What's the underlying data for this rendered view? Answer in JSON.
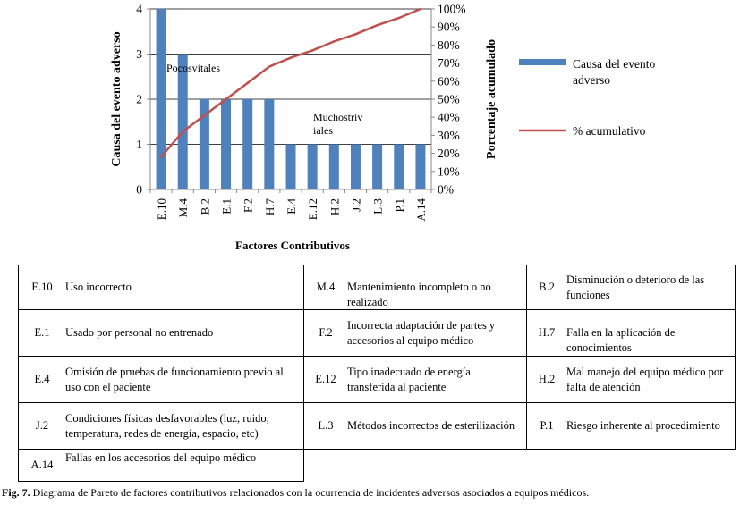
{
  "chart_data": {
    "type": "bar",
    "categories": [
      "E.10",
      "M.4",
      "B.2",
      "E.1",
      "F.2",
      "H.7",
      "E.4",
      "E.12",
      "H.2",
      "J.2",
      "L.3",
      "P.1",
      "A.14"
    ],
    "series": [
      {
        "name": "Causa del evento adverso",
        "values": [
          4,
          3,
          2,
          2,
          2,
          2,
          1,
          1,
          1,
          1,
          1,
          1,
          1
        ],
        "color": "#4F81BD",
        "axis": "left"
      },
      {
        "name": "% acumulativo",
        "values": [
          18,
          32,
          41,
          50,
          59,
          68,
          73,
          77,
          82,
          86,
          91,
          95,
          100
        ],
        "color": "#C0504D",
        "axis": "right"
      }
    ],
    "xlabel": "Factores Contributivos",
    "ylabel": "Causa del evento adverso",
    "y2label": "Porcentaje acumulado",
    "ylim": [
      0,
      4
    ],
    "y2lim": [
      0,
      100
    ],
    "yticks": [
      "0",
      "1",
      "2",
      "3",
      "4"
    ],
    "y2ticks": [
      "0%",
      "10%",
      "20%",
      "30%",
      "40%",
      "50%",
      "60%",
      "70%",
      "80%",
      "90%",
      "100%"
    ],
    "legend_entries": [
      "Causa del evento adverso",
      "% acumulativo"
    ],
    "legend_placement": "right",
    "annotations": [
      "Pocosvitales",
      "Muchostriv iales"
    ],
    "grid": true
  },
  "table": {
    "rows": [
      [
        [
          "E.10",
          "Uso incorrecto"
        ],
        [
          "M.4",
          "Mantenimiento incompleto o no realizado"
        ],
        [
          "B.2",
          "Disminución o deterioro de las funciones"
        ]
      ],
      [
        [
          "E.1",
          "Usado por personal no entrenado"
        ],
        [
          "F.2",
          "Incorrecta adaptación  de partes y accesorios al equipo médico"
        ],
        [
          "H.7",
          "Falla en la aplicación de conocimientos"
        ]
      ],
      [
        [
          "E.4",
          "Omisión de pruebas de funcionamiento previo al uso con el paciente"
        ],
        [
          "E.12",
          "Tipo inadecuado de energía transferida al paciente"
        ],
        [
          "H.2",
          "Mal manejo del equipo médico por falta de atención"
        ]
      ],
      [
        [
          "J.2",
          "Condiciones físicas desfavorables (luz, ruido, temperatura, redes de energía, espacio, etc)"
        ],
        [
          "L.3",
          "Métodos incorrectos de esterilización"
        ],
        [
          "P.1",
          "Riesgo inherente al procedimiento"
        ]
      ],
      [
        [
          "A.14",
          "Fallas en los accesorios del equipo médico"
        ]
      ]
    ]
  },
  "caption": {
    "label": "Fig. 7.",
    "text": " Diagrama de Pareto de factores contributivos relacionados con la ocurrencia de incidentes adversos asociados a equipos médicos."
  }
}
